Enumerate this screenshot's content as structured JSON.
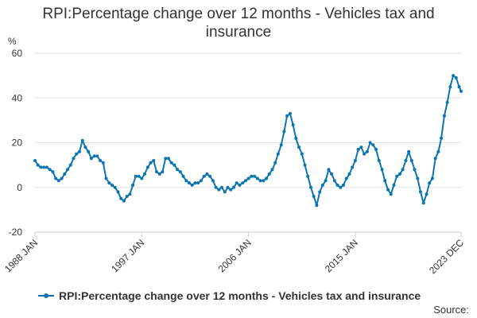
{
  "title_lines": [
    "RPI:Percentage change over 12 months - Vehicles tax and",
    "insurance"
  ],
  "source_label": "Source:",
  "chart_data": {
    "type": "line",
    "title": "RPI:Percentage change over 12 months - Vehicles tax and insurance",
    "ylabel": "%",
    "xlabel": "",
    "ylim": [
      -20,
      60
    ],
    "yticks": [
      -20,
      0,
      20,
      40,
      60
    ],
    "xlim": [
      "1988-01",
      "2023-12"
    ],
    "xticks": [
      {
        "date": "1988-01",
        "label": "1988 JAN"
      },
      {
        "date": "1997-01",
        "label": "1997 JAN"
      },
      {
        "date": "2006-01",
        "label": "2006 JAN"
      },
      {
        "date": "2015-01",
        "label": "2015 JAN"
      },
      {
        "date": "2023-12",
        "label": "2023 DEC"
      }
    ],
    "grid": true,
    "legend": "bottom",
    "color": "#0d74b2",
    "series": [
      {
        "name": "RPI:Percentage change over 12 months - Vehicles tax and insurance",
        "points": [
          [
            "1988-01",
            12
          ],
          [
            "1988-04",
            10
          ],
          [
            "1988-07",
            9
          ],
          [
            "1988-10",
            9
          ],
          [
            "1989-01",
            9
          ],
          [
            "1989-04",
            8
          ],
          [
            "1989-07",
            7
          ],
          [
            "1989-10",
            4
          ],
          [
            "1990-01",
            3
          ],
          [
            "1990-04",
            4
          ],
          [
            "1990-07",
            6
          ],
          [
            "1990-10",
            8
          ],
          [
            "1991-01",
            10
          ],
          [
            "1991-04",
            13
          ],
          [
            "1991-07",
            15
          ],
          [
            "1991-10",
            16
          ],
          [
            "1992-01",
            21
          ],
          [
            "1992-04",
            18
          ],
          [
            "1992-07",
            16
          ],
          [
            "1992-10",
            13
          ],
          [
            "1993-01",
            14
          ],
          [
            "1993-04",
            14
          ],
          [
            "1993-07",
            12
          ],
          [
            "1993-10",
            11
          ],
          [
            "1994-01",
            4
          ],
          [
            "1994-04",
            2
          ],
          [
            "1994-07",
            1
          ],
          [
            "1994-10",
            0
          ],
          [
            "1995-01",
            -2
          ],
          [
            "1995-04",
            -5
          ],
          [
            "1995-07",
            -6
          ],
          [
            "1995-10",
            -4
          ],
          [
            "1996-01",
            -3
          ],
          [
            "1996-04",
            1
          ],
          [
            "1996-07",
            5
          ],
          [
            "1996-10",
            5
          ],
          [
            "1997-01",
            4
          ],
          [
            "1997-04",
            6
          ],
          [
            "1997-07",
            9
          ],
          [
            "1997-10",
            11
          ],
          [
            "1998-01",
            12
          ],
          [
            "1998-04",
            7
          ],
          [
            "1998-07",
            6
          ],
          [
            "1998-10",
            7
          ],
          [
            "1999-01",
            13
          ],
          [
            "1999-04",
            13
          ],
          [
            "1999-07",
            11
          ],
          [
            "1999-10",
            10
          ],
          [
            "2000-01",
            8
          ],
          [
            "2000-04",
            7
          ],
          [
            "2000-07",
            5
          ],
          [
            "2000-10",
            3
          ],
          [
            "2001-01",
            2
          ],
          [
            "2001-04",
            1
          ],
          [
            "2001-07",
            2
          ],
          [
            "2001-10",
            2
          ],
          [
            "2002-01",
            3
          ],
          [
            "2002-04",
            5
          ],
          [
            "2002-07",
            6
          ],
          [
            "2002-10",
            5
          ],
          [
            "2003-01",
            3
          ],
          [
            "2003-04",
            0
          ],
          [
            "2003-07",
            -1
          ],
          [
            "2003-10",
            0
          ],
          [
            "2004-01",
            -2
          ],
          [
            "2004-04",
            0
          ],
          [
            "2004-07",
            -1
          ],
          [
            "2004-10",
            0
          ],
          [
            "2005-01",
            2
          ],
          [
            "2005-04",
            1
          ],
          [
            "2005-07",
            2
          ],
          [
            "2005-10",
            3
          ],
          [
            "2006-01",
            4
          ],
          [
            "2006-04",
            5
          ],
          [
            "2006-07",
            5
          ],
          [
            "2006-10",
            4
          ],
          [
            "2007-01",
            3
          ],
          [
            "2007-04",
            3
          ],
          [
            "2007-07",
            4
          ],
          [
            "2007-10",
            6
          ],
          [
            "2008-01",
            8
          ],
          [
            "2008-04",
            11
          ],
          [
            "2008-07",
            15
          ],
          [
            "2008-10",
            19
          ],
          [
            "2009-01",
            25
          ],
          [
            "2009-04",
            32
          ],
          [
            "2009-07",
            33
          ],
          [
            "2009-10",
            28
          ],
          [
            "2010-01",
            22
          ],
          [
            "2010-04",
            18
          ],
          [
            "2010-07",
            15
          ],
          [
            "2010-10",
            10
          ],
          [
            "2011-01",
            5
          ],
          [
            "2011-04",
            0
          ],
          [
            "2011-07",
            -4
          ],
          [
            "2011-10",
            -8
          ],
          [
            "2012-01",
            -2
          ],
          [
            "2012-04",
            1
          ],
          [
            "2012-07",
            3
          ],
          [
            "2012-10",
            8
          ],
          [
            "2013-01",
            6
          ],
          [
            "2013-04",
            3
          ],
          [
            "2013-07",
            1
          ],
          [
            "2013-10",
            0
          ],
          [
            "2014-01",
            1
          ],
          [
            "2014-04",
            4
          ],
          [
            "2014-07",
            6
          ],
          [
            "2014-10",
            9
          ],
          [
            "2015-01",
            12
          ],
          [
            "2015-04",
            17
          ],
          [
            "2015-07",
            18
          ],
          [
            "2015-10",
            15
          ],
          [
            "2016-01",
            16
          ],
          [
            "2016-04",
            20
          ],
          [
            "2016-07",
            19
          ],
          [
            "2016-10",
            17
          ],
          [
            "2017-01",
            12
          ],
          [
            "2017-04",
            8
          ],
          [
            "2017-07",
            3
          ],
          [
            "2017-10",
            -1
          ],
          [
            "2018-01",
            -3
          ],
          [
            "2018-04",
            1
          ],
          [
            "2018-07",
            5
          ],
          [
            "2018-10",
            6
          ],
          [
            "2019-01",
            8
          ],
          [
            "2019-04",
            12
          ],
          [
            "2019-07",
            16
          ],
          [
            "2019-10",
            12
          ],
          [
            "2020-01",
            8
          ],
          [
            "2020-04",
            4
          ],
          [
            "2020-07",
            -2
          ],
          [
            "2020-10",
            -7
          ],
          [
            "2021-01",
            -3
          ],
          [
            "2021-04",
            2
          ],
          [
            "2021-07",
            4
          ],
          [
            "2021-10",
            13
          ],
          [
            "2022-01",
            16
          ],
          [
            "2022-04",
            22
          ],
          [
            "2022-07",
            32
          ],
          [
            "2022-10",
            38
          ],
          [
            "2023-01",
            45
          ],
          [
            "2023-04",
            50
          ],
          [
            "2023-07",
            49
          ],
          [
            "2023-10",
            45
          ],
          [
            "2023-12",
            43
          ]
        ]
      }
    ]
  }
}
